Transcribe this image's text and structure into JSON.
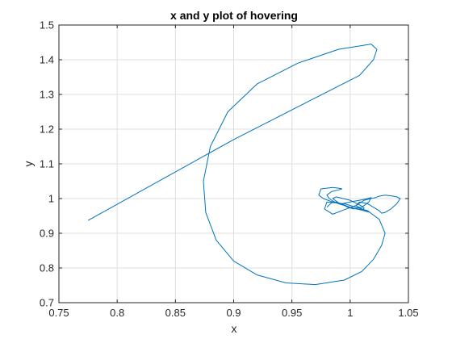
{
  "chart_data": {
    "type": "line",
    "title": "x and y plot of hovering",
    "xlabel": "x",
    "ylabel": "y",
    "xlim": [
      0.75,
      1.05
    ],
    "ylim": [
      0.7,
      1.5
    ],
    "xticks": [
      "0.75",
      "0.8",
      "0.85",
      "0.9",
      "0.95",
      "1",
      "1.05"
    ],
    "yticks": [
      "0.7",
      "0.8",
      "0.9",
      "1",
      "1.1",
      "1.2",
      "1.3",
      "1.4",
      "1.5"
    ],
    "grid": true,
    "colors": {
      "line": "#0072bd",
      "grid": "#dfdfdf",
      "axis": "#262626"
    },
    "series": [
      {
        "x": [
          0.775,
          0.9,
          1.008,
          1.02,
          1.023,
          1.018,
          0.99,
          0.955,
          0.92,
          0.895,
          0.88,
          0.874,
          0.876,
          0.885,
          0.9,
          0.92,
          0.945,
          0.97,
          0.995,
          1.01,
          1.02,
          1.027,
          1.03,
          1.025,
          1.015,
          0.995,
          0.98,
          0.978,
          0.985,
          0.995,
          1.005,
          1.012,
          1.018,
          1.022,
          1.025,
          1.03,
          1.035,
          1.04,
          1.043,
          1.04,
          1.035,
          1.03,
          1.027,
          1.025,
          1.02,
          1.015,
          1.008,
          1.005,
          1.01,
          1.015,
          1.017,
          1.012,
          1.0,
          0.99,
          0.985,
          0.982,
          0.98,
          0.984,
          0.99,
          0.993,
          0.99,
          0.985,
          0.98,
          0.975,
          0.973,
          0.977,
          0.985,
          0.993,
          1.0,
          1.008,
          1.015,
          1.018,
          1.016,
          1.01,
          1.003,
          0.998,
          0.994,
          0.99,
          0.987,
          0.985,
          0.988,
          0.994,
          1.0,
          1.006,
          1.01,
          1.012,
          1.01,
          1.005,
          1.0,
          0.996,
          0.993,
          0.99,
          0.988,
          0.984,
          0.98
        ],
        "y": [
          0.937,
          1.17,
          1.355,
          1.4,
          1.43,
          1.445,
          1.43,
          1.39,
          1.33,
          1.25,
          1.15,
          1.05,
          0.96,
          0.88,
          0.82,
          0.78,
          0.757,
          0.752,
          0.765,
          0.79,
          0.825,
          0.865,
          0.9,
          0.94,
          0.965,
          0.985,
          0.99,
          0.97,
          0.955,
          0.968,
          0.98,
          0.995,
          1.0,
          1.003,
          1.007,
          1.01,
          1.008,
          1.005,
          1.0,
          0.985,
          0.97,
          0.96,
          0.958,
          0.965,
          0.975,
          0.985,
          0.99,
          0.98,
          0.97,
          0.962,
          0.96,
          0.965,
          0.975,
          0.985,
          0.993,
          1.0,
          1.01,
          1.02,
          1.025,
          1.028,
          1.03,
          1.032,
          1.03,
          1.028,
          1.01,
          1.0,
          0.99,
          0.985,
          0.99,
          0.995,
          1.0,
          1.003,
          0.99,
          0.975,
          0.97,
          0.975,
          0.982,
          0.988,
          0.995,
          1.0,
          1.005,
          1.0,
          0.995,
          0.985,
          0.978,
          0.972,
          0.968,
          0.97,
          0.975,
          0.98,
          0.984,
          0.988,
          0.99,
          0.988,
          0.975
        ]
      }
    ]
  }
}
